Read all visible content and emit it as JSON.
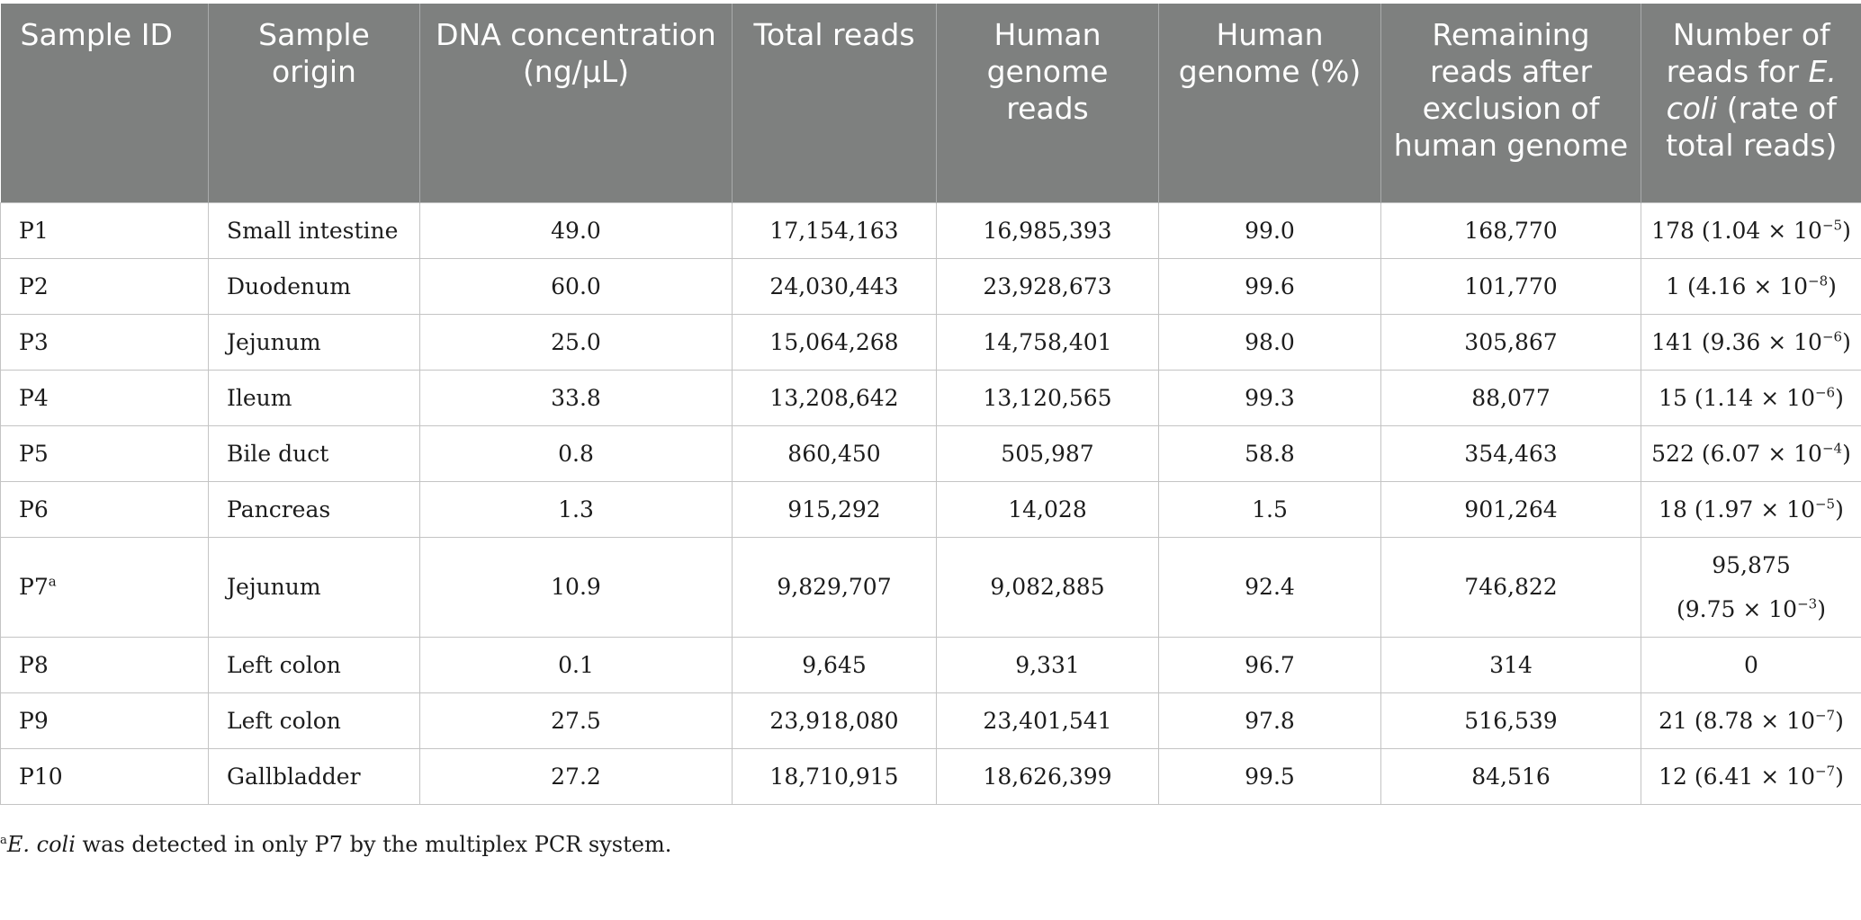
{
  "columns": [
    "Sample ID",
    "Sample origin",
    "DNA concentration (ng/μL)",
    "Total reads",
    "Human genome reads",
    "Human genome (%)",
    "Remaining reads after exclusion of human genome",
    "Number of reads for E. coli (rate of total reads)"
  ],
  "rows": [
    {
      "id": "P1",
      "origin": "Small intestine",
      "dna": "49.0",
      "total": "17,154,163",
      "human": "16,985,393",
      "pct": "99.0",
      "remaining": "168,770",
      "ecoli_count": "178",
      "ecoli_mantissa": "1.04",
      "ecoli_exp": "−5"
    },
    {
      "id": "P2",
      "origin": "Duodenum",
      "dna": "60.0",
      "total": "24,030,443",
      "human": "23,928,673",
      "pct": "99.6",
      "remaining": "101,770",
      "ecoli_count": "1",
      "ecoli_mantissa": "4.16",
      "ecoli_exp": "−8"
    },
    {
      "id": "P3",
      "origin": "Jejunum",
      "dna": "25.0",
      "total": "15,064,268",
      "human": "14,758,401",
      "pct": "98.0",
      "remaining": "305,867",
      "ecoli_count": "141",
      "ecoli_mantissa": "9.36",
      "ecoli_exp": "−6"
    },
    {
      "id": "P4",
      "origin": "Ileum",
      "dna": "33.8",
      "total": "13,208,642",
      "human": "13,120,565",
      "pct": "99.3",
      "remaining": "88,077",
      "ecoli_count": "15",
      "ecoli_mantissa": "1.14",
      "ecoli_exp": "−6"
    },
    {
      "id": "P5",
      "origin": "Bile duct",
      "dna": "0.8",
      "total": "860,450",
      "human": "505,987",
      "pct": "58.8",
      "remaining": "354,463",
      "ecoli_count": "522",
      "ecoli_mantissa": "6.07",
      "ecoli_exp": "−4"
    },
    {
      "id": "P6",
      "origin": "Pancreas",
      "dna": "1.3",
      "total": "915,292",
      "human": "14,028",
      "pct": "1.5",
      "remaining": "901,264",
      "ecoli_count": "18",
      "ecoli_mantissa": "1.97",
      "ecoli_exp": "−5"
    },
    {
      "id": "P7",
      "id_note": "a",
      "origin": "Jejunum",
      "dna": "10.9",
      "total": "9,829,707",
      "human": "9,082,885",
      "pct": "92.4",
      "remaining": "746,822",
      "ecoli_count": "95,875",
      "ecoli_mantissa": "9.75",
      "ecoli_exp": "−3"
    },
    {
      "id": "P8",
      "origin": "Left colon",
      "dna": "0.1",
      "total": "9,645",
      "human": "9,331",
      "pct": "96.7",
      "remaining": "314",
      "ecoli_count": "0"
    },
    {
      "id": "P9",
      "origin": "Left colon",
      "dna": "27.5",
      "total": "23,918,080",
      "human": "23,401,541",
      "pct": "97.8",
      "remaining": "516,539",
      "ecoli_count": "21",
      "ecoli_mantissa": "8.78",
      "ecoli_exp": "−7"
    },
    {
      "id": "P10",
      "origin": "Gallbladder",
      "dna": "27.2",
      "total": "18,710,915",
      "human": "18,626,399",
      "pct": "99.5",
      "remaining": "84,516",
      "ecoli_count": "12",
      "ecoli_mantissa": "6.41",
      "ecoli_exp": "−7"
    }
  ],
  "footnote": {
    "marker": "a",
    "organism": "E. coli",
    "text": " was detected in only P7 by the multiplex PCR system."
  },
  "colors": {
    "header_bg": "#7e807f",
    "header_text": "#ffffff",
    "grid": "#c4c4c4"
  }
}
